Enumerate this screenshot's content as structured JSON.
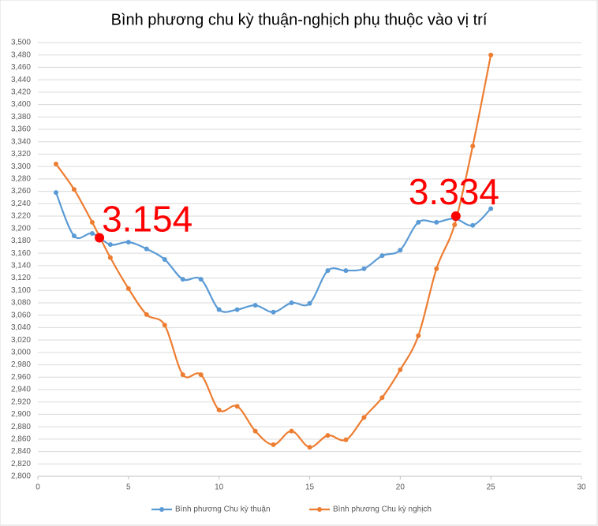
{
  "chart_data": {
    "type": "line",
    "smooth": true,
    "title": "Bình phương chu kỳ thuận-nghịch phụ thuộc vào vị trí",
    "x": [
      1,
      2,
      3,
      4,
      5,
      6,
      7,
      8,
      9,
      10,
      11,
      12,
      13,
      14,
      15,
      16,
      17,
      18,
      19,
      20,
      21,
      22,
      23,
      24,
      25
    ],
    "series": [
      {
        "name": "Bình phương Chu kỳ thuận",
        "color": "#5b9bd5",
        "values": [
          3.258,
          3.188,
          3.192,
          3.174,
          3.178,
          3.167,
          3.15,
          3.118,
          3.118,
          3.069,
          3.069,
          3.076,
          3.065,
          3.08,
          3.079,
          3.132,
          3.132,
          3.135,
          3.156,
          3.165,
          3.21,
          3.21,
          3.216,
          3.205,
          3.232
        ]
      },
      {
        "name": "Bình phương Chu kỳ nghịch",
        "color": "#ed7d31",
        "values": [
          3.304,
          3.263,
          3.21,
          3.153,
          3.103,
          3.061,
          3.044,
          2.964,
          2.964,
          2.907,
          2.913,
          2.873,
          2.851,
          2.873,
          2.847,
          2.866,
          2.859,
          2.895,
          2.927,
          2.972,
          3.027,
          3.135,
          3.206,
          3.333,
          3.48
        ]
      }
    ],
    "annotations": [
      {
        "text": "3.154",
        "x": 3.4,
        "y": 3.185,
        "color": "#ff0000"
      },
      {
        "text": "3.334",
        "x": 23.07,
        "y": 3.22,
        "color": "#ff0000"
      }
    ],
    "xlim": [
      0,
      30
    ],
    "xticks": [
      0,
      5,
      10,
      15,
      20,
      25,
      30
    ],
    "ylim": [
      2.8,
      3.5
    ],
    "yticks": [
      {
        "value": 2.8,
        "label": "2,800"
      },
      {
        "value": 2.82,
        "label": "2,820"
      },
      {
        "value": 2.84,
        "label": "2,840"
      },
      {
        "value": 2.86,
        "label": "2,860"
      },
      {
        "value": 2.88,
        "label": "2,880"
      },
      {
        "value": 2.9,
        "label": "2,900"
      },
      {
        "value": 2.92,
        "label": "2,920"
      },
      {
        "value": 2.94,
        "label": "2,940"
      },
      {
        "value": 2.96,
        "label": "2,960"
      },
      {
        "value": 2.98,
        "label": "2,980"
      },
      {
        "value": 3.0,
        "label": "3,000"
      },
      {
        "value": 3.02,
        "label": "3,020"
      },
      {
        "value": 3.04,
        "label": "3,040"
      },
      {
        "value": 3.06,
        "label": "3,060"
      },
      {
        "value": 3.08,
        "label": "3,080"
      },
      {
        "value": 3.1,
        "label": "3,100"
      },
      {
        "value": 3.12,
        "label": "3,120"
      },
      {
        "value": 3.14,
        "label": "3,140"
      },
      {
        "value": 3.16,
        "label": "3,160"
      },
      {
        "value": 3.18,
        "label": "3,180"
      },
      {
        "value": 3.2,
        "label": "3,200"
      },
      {
        "value": 3.22,
        "label": "3,220"
      },
      {
        "value": 3.24,
        "label": "3,240"
      },
      {
        "value": 3.26,
        "label": "3,260"
      },
      {
        "value": 3.28,
        "label": "3,280"
      },
      {
        "value": 3.3,
        "label": "3,300"
      },
      {
        "value": 3.32,
        "label": "3,320"
      },
      {
        "value": 3.34,
        "label": "3,340"
      },
      {
        "value": 3.36,
        "label": "3,360"
      },
      {
        "value": 3.38,
        "label": "3,380"
      },
      {
        "value": 3.4,
        "label": "3,400"
      },
      {
        "value": 3.42,
        "label": "3,420"
      },
      {
        "value": 3.44,
        "label": "3,440"
      },
      {
        "value": 3.46,
        "label": "3,460"
      },
      {
        "value": 3.48,
        "label": "3,480"
      },
      {
        "value": 3.5,
        "label": "3,500"
      }
    ],
    "grid": true,
    "legend": "bottom"
  }
}
